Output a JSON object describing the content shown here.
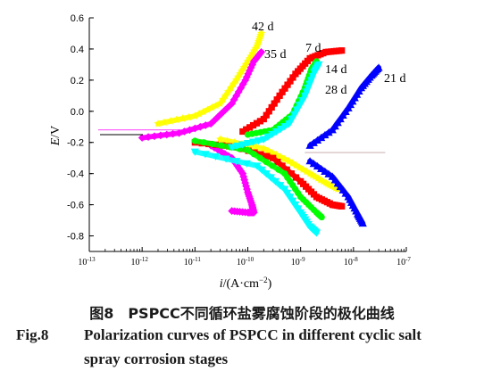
{
  "chart_data": {
    "type": "scatter",
    "x_scale": "log",
    "xlabel_italic": "i",
    "xlabel_rest": "/(A·cm",
    "xlabel_sup": "−2",
    "xlabel_close": ")",
    "ylabel_italic": "E",
    "ylabel_rest": "/V",
    "xlim": [
      1e-13,
      1e-07
    ],
    "ylim": [
      -0.9,
      0.6
    ],
    "x_ticks": [
      {
        "v": 1e-13,
        "base": "10",
        "exp": "-13"
      },
      {
        "v": 1e-12,
        "base": "10",
        "exp": "-12"
      },
      {
        "v": 1e-11,
        "base": "10",
        "exp": "-11"
      },
      {
        "v": 1e-10,
        "base": "10",
        "exp": "-10"
      },
      {
        "v": 1e-09,
        "base": "10",
        "exp": "-9"
      },
      {
        "v": 1e-08,
        "base": "10",
        "exp": "-8"
      },
      {
        "v": 1e-07,
        "base": "10",
        "exp": "-7"
      }
    ],
    "y_ticks": [
      "0.6",
      "0.4",
      "0.2",
      "0.0",
      "-0.2",
      "-0.4",
      "-0.6",
      "-0.8"
    ],
    "series": [
      {
        "name": "42 d",
        "color": "#ffff00",
        "marker": "star",
        "anodic": [
          [
            2e-12,
            -0.08
          ],
          [
            1e-11,
            -0.03
          ],
          [
            3e-11,
            0.05
          ],
          [
            6e-11,
            0.2
          ],
          [
            1e-10,
            0.32
          ],
          [
            1.5e-10,
            0.42
          ],
          [
            1.8e-10,
            0.5
          ]
        ],
        "cathodic": [
          [
            3e-11,
            -0.18
          ],
          [
            2e-10,
            -0.24
          ],
          [
            6e-10,
            -0.32
          ],
          [
            1.5e-09,
            -0.4
          ],
          [
            3e-09,
            -0.46
          ],
          [
            5e-09,
            -0.5
          ]
        ]
      },
      {
        "name": "35 d",
        "color": "#ff00ff",
        "marker": "diamond",
        "anodic": [
          [
            1e-12,
            -0.17
          ],
          [
            5e-12,
            -0.14
          ],
          [
            2e-11,
            -0.08
          ],
          [
            5e-11,
            0.05
          ],
          [
            9e-11,
            0.2
          ],
          [
            1.3e-10,
            0.32
          ],
          [
            1.8e-10,
            0.38
          ]
        ],
        "cathodic": [
          [
            2e-11,
            -0.22
          ],
          [
            5e-11,
            -0.3
          ],
          [
            8e-11,
            -0.4
          ],
          [
            1e-10,
            -0.52
          ],
          [
            1.2e-10,
            -0.6
          ],
          [
            1.3e-10,
            -0.65
          ],
          [
            1e-10,
            -0.65
          ],
          [
            5e-11,
            -0.64
          ]
        ]
      },
      {
        "name": "7 d",
        "color": "#ff0000",
        "marker": "square",
        "anodic": [
          [
            8e-11,
            -0.13
          ],
          [
            2e-10,
            -0.05
          ],
          [
            4e-10,
            0.1
          ],
          [
            8e-10,
            0.24
          ],
          [
            1.5e-09,
            0.34
          ],
          [
            3e-09,
            0.38
          ],
          [
            6e-09,
            0.39
          ]
        ],
        "cathodic": [
          [
            1e-11,
            -0.2
          ],
          [
            6e-11,
            -0.23
          ],
          [
            3e-10,
            -0.3
          ],
          [
            1e-09,
            -0.45
          ],
          [
            2e-09,
            -0.55
          ],
          [
            4e-09,
            -0.6
          ],
          [
            6e-09,
            -0.61
          ]
        ]
      },
      {
        "name": "14 d",
        "color": "#00ff00",
        "marker": "circle",
        "anodic": [
          [
            1e-10,
            -0.15
          ],
          [
            3e-10,
            -0.12
          ],
          [
            7e-10,
            -0.02
          ],
          [
            1.2e-09,
            0.15
          ],
          [
            1.6e-09,
            0.27
          ],
          [
            2e-09,
            0.32
          ]
        ],
        "cathodic": [
          [
            1e-11,
            -0.19
          ],
          [
            1e-10,
            -0.25
          ],
          [
            5e-10,
            -0.4
          ],
          [
            1e-09,
            -0.55
          ],
          [
            2e-09,
            -0.65
          ],
          [
            2.5e-09,
            -0.68
          ]
        ]
      },
      {
        "name": "28 d",
        "color": "#00ffff",
        "marker": "triangle-down",
        "anodic": [
          [
            5e-11,
            -0.23
          ],
          [
            2e-10,
            -0.18
          ],
          [
            6e-10,
            -0.08
          ],
          [
            1.2e-09,
            0.1
          ],
          [
            1.8e-09,
            0.25
          ],
          [
            2.2e-09,
            0.3
          ]
        ],
        "cathodic": [
          [
            1e-11,
            -0.26
          ],
          [
            1.5e-10,
            -0.35
          ],
          [
            5e-10,
            -0.5
          ],
          [
            1e-09,
            -0.65
          ],
          [
            1.5e-09,
            -0.74
          ],
          [
            2e-09,
            -0.78
          ]
        ]
      },
      {
        "name": "21 d",
        "color": "#0000ff",
        "marker": "triangle-up",
        "anodic": [
          [
            1.5e-09,
            -0.22
          ],
          [
            4e-09,
            -0.12
          ],
          [
            8e-09,
            0.02
          ],
          [
            1.4e-08,
            0.15
          ],
          [
            2.2e-08,
            0.23
          ],
          [
            3e-08,
            0.28
          ]
        ],
        "cathodic": [
          [
            1.5e-09,
            -0.32
          ],
          [
            4e-09,
            -0.42
          ],
          [
            8e-09,
            -0.55
          ],
          [
            1.2e-08,
            -0.66
          ],
          [
            1.5e-08,
            -0.72
          ]
        ]
      }
    ],
    "corrosion_points": [
      [
        1e-11,
        -0.2
      ],
      [
        1e-11,
        -0.25
      ],
      [
        1e-11,
        -0.17
      ],
      [
        1e-11,
        -0.24
      ],
      [
        1e-11,
        -0.21
      ],
      [
        1.2e-09,
        -0.27
      ]
    ]
  },
  "caption": {
    "cn": "图8　PSPCC不同循环盐雾腐蚀阶段的极化曲线",
    "en_num": "Fig.8",
    "en_line1": "Polarization curves of PSPCC in different cyclic salt",
    "en_line2": "spray corrosion stages"
  }
}
